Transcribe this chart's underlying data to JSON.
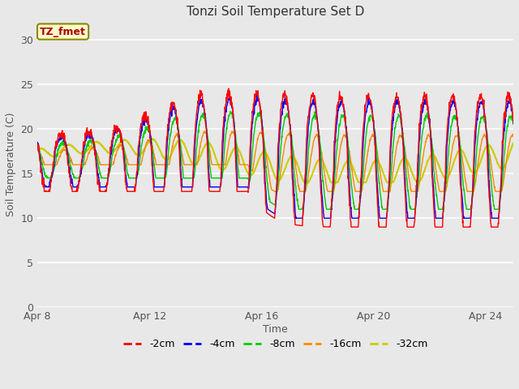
{
  "title": "Tonzi Soil Temperature Set D",
  "xlabel": "Time",
  "ylabel": "Soil Temperature (C)",
  "ylim": [
    0,
    32
  ],
  "yticks": [
    0,
    5,
    10,
    15,
    20,
    25,
    30
  ],
  "xticklabels": [
    "Apr 8",
    "Apr 12",
    "Apr 16",
    "Apr 20",
    "Apr 24"
  ],
  "xtick_positions": [
    0,
    4,
    8,
    12,
    16
  ],
  "annotation": "TZ_fmet",
  "annotation_color": "#aa0000",
  "annotation_bg": "#ffffcc",
  "annotation_border": "#888800",
  "colors": {
    "-2cm": "#ff0000",
    "-4cm": "#0000ff",
    "-8cm": "#00cc00",
    "-16cm": "#ff8800",
    "-32cm": "#cccc00"
  },
  "legend_order": [
    "-2cm",
    "-4cm",
    "-8cm",
    "-16cm",
    "-32cm"
  ],
  "fig_bg": "#e8e8e8",
  "plot_bg": "#e8e8e8",
  "n_days": 17,
  "points_per_day": 96
}
